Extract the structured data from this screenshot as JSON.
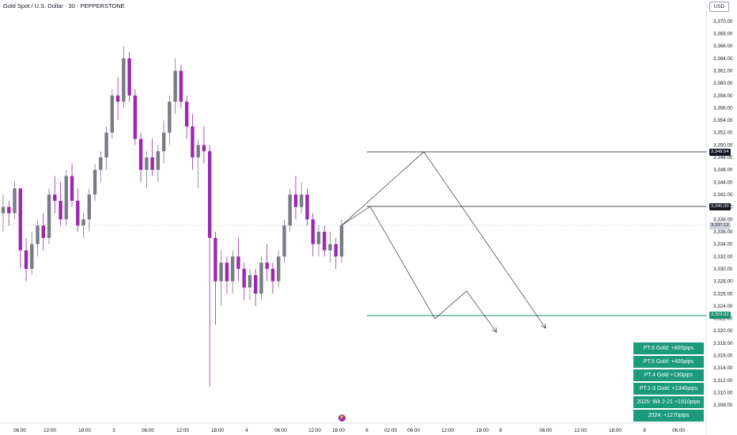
{
  "header": {
    "title": "Gold Spot / U.S. Dollar · 30 · PEPPERSTONE",
    "currency": "USD"
  },
  "price_axis": {
    "ticks": [
      "3,370.00",
      "3,368.00",
      "3,366.00",
      "3,364.00",
      "3,362.00",
      "3,360.00",
      "3,358.00",
      "3,356.00",
      "3,354.00",
      "3,352.00",
      "3,350.00",
      "3,348.00",
      "3,346.00",
      "3,344.00",
      "3,342.00",
      "3,340.00",
      "3,338.00",
      "3,336.00",
      "3,334.00",
      "3,332.00",
      "3,330.00",
      "3,328.00",
      "3,326.00",
      "3,324.00",
      "3,322.00",
      "3,320.00",
      "3,318.00",
      "3,316.00",
      "3,314.00",
      "3,312.00",
      "3,310.00",
      "3,308.00"
    ],
    "labels": {
      "level_high": "3,348.54",
      "level_mid": "3,340.00",
      "last_price": "3,337.13",
      "level_low": "3,323.02"
    }
  },
  "time_axis": {
    "ticks": [
      "06:00",
      "12:00",
      "18:00",
      "3",
      "06:00",
      "12:00",
      "18:00",
      "4",
      "06:00",
      "12:00",
      "16:00",
      "6",
      "02:00",
      "06:00",
      "12:00",
      "18:00",
      "8",
      "06:00",
      "12:00",
      "18:00",
      "9",
      "06:00"
    ]
  },
  "annotations": [
    "PT.6 Gold: +800pips",
    "PT.5 Gold: +400pips",
    "PT.4 Gold +130pips",
    "PT.1-3 Gold: +1340pips",
    "2025: Wk 2-21  +1910pips",
    "2024: +1270pips"
  ],
  "colors": {
    "bull": "#787b86",
    "bear": "#9c27b0",
    "level_green": "#1b8f6e",
    "box": "#1b9a7c"
  },
  "chart_data": {
    "type": "candlestick",
    "symbol": "Gold Spot / U.S. Dollar",
    "interval": "30",
    "exchange": "PEPPERSTONE",
    "y_range": [
      3307,
      3371
    ],
    "levels": [
      3348.54,
      3340.0,
      3323.02
    ],
    "last_price": 3337.13,
    "candles": [
      [
        3339.0,
        3342.0,
        3336.0,
        3340.0
      ],
      [
        3340.0,
        3341.0,
        3337.0,
        3339.0
      ],
      [
        3339.0,
        3344.0,
        3338.0,
        3343.0
      ],
      [
        3343.0,
        3343.0,
        3330.0,
        3333.0
      ],
      [
        3333.0,
        3335.0,
        3328.0,
        3330.0
      ],
      [
        3330.0,
        3336.0,
        3329.0,
        3334.0
      ],
      [
        3334.0,
        3338.0,
        3332.0,
        3337.0
      ],
      [
        3337.0,
        3339.0,
        3333.0,
        3335.0
      ],
      [
        3335.0,
        3343.0,
        3334.0,
        3342.0
      ],
      [
        3342.0,
        3345.0,
        3339.0,
        3341.0
      ],
      [
        3341.0,
        3344.0,
        3337.0,
        3338.0
      ],
      [
        3338.0,
        3346.0,
        3337.0,
        3345.0
      ],
      [
        3345.0,
        3347.0,
        3340.0,
        3341.0
      ],
      [
        3341.0,
        3343.0,
        3336.0,
        3337.0
      ],
      [
        3337.0,
        3339.0,
        3335.0,
        3338.0
      ],
      [
        3338.0,
        3343.0,
        3336.0,
        3342.0
      ],
      [
        3342.0,
        3347.0,
        3341.0,
        3346.0
      ],
      [
        3346.0,
        3349.0,
        3344.0,
        3348.0
      ],
      [
        3348.0,
        3353.0,
        3346.0,
        3352.0
      ],
      [
        3352.0,
        3359.0,
        3351.0,
        3358.0
      ],
      [
        3358.0,
        3361.0,
        3354.0,
        3357.0
      ],
      [
        3357.0,
        3366.0,
        3356.0,
        3364.0
      ],
      [
        3364.0,
        3365.0,
        3357.0,
        3358.0
      ],
      [
        3358.0,
        3359.0,
        3350.0,
        3351.0
      ],
      [
        3351.0,
        3352.0,
        3344.0,
        3346.0
      ],
      [
        3346.0,
        3349.0,
        3343.0,
        3348.0
      ],
      [
        3348.0,
        3351.0,
        3345.0,
        3346.0
      ],
      [
        3346.0,
        3350.0,
        3344.0,
        3349.0
      ],
      [
        3349.0,
        3354.0,
        3347.0,
        3352.0
      ],
      [
        3352.0,
        3358.0,
        3350.0,
        3357.0
      ],
      [
        3357.0,
        3364.0,
        3355.0,
        3362.0
      ],
      [
        3362.0,
        3363.0,
        3356.0,
        3357.0
      ],
      [
        3357.0,
        3358.0,
        3351.0,
        3353.0
      ],
      [
        3353.0,
        3355.0,
        3346.0,
        3348.0
      ],
      [
        3348.0,
        3351.0,
        3343.0,
        3350.0
      ],
      [
        3350.0,
        3353.0,
        3347.0,
        3349.0
      ],
      [
        3349.0,
        3350.0,
        3311.0,
        3335.0
      ],
      [
        3335.0,
        3336.0,
        3321.0,
        3328.0
      ],
      [
        3328.0,
        3333.0,
        3324.0,
        3331.0
      ],
      [
        3331.0,
        3332.0,
        3326.0,
        3328.0
      ],
      [
        3328.0,
        3333.0,
        3326.0,
        3332.0
      ],
      [
        3332.0,
        3335.0,
        3328.0,
        3330.0
      ],
      [
        3330.0,
        3331.0,
        3325.0,
        3327.0
      ],
      [
        3327.0,
        3330.0,
        3325.0,
        3329.0
      ],
      [
        3329.0,
        3330.0,
        3324.0,
        3326.0
      ],
      [
        3326.0,
        3332.0,
        3325.0,
        3331.0
      ],
      [
        3331.0,
        3334.0,
        3328.0,
        3330.0
      ],
      [
        3330.0,
        3331.0,
        3326.0,
        3328.0
      ],
      [
        3328.0,
        3333.0,
        3327.0,
        3332.0
      ],
      [
        3332.0,
        3338.0,
        3331.0,
        3337.0
      ],
      [
        3337.0,
        3343.0,
        3336.0,
        3342.0
      ],
      [
        3342.0,
        3345.0,
        3338.0,
        3340.0
      ],
      [
        3340.0,
        3344.0,
        3339.0,
        3342.0
      ],
      [
        3342.0,
        3343.0,
        3337.0,
        3338.0
      ],
      [
        3338.0,
        3339.0,
        3332.0,
        3334.0
      ],
      [
        3334.0,
        3337.0,
        3332.0,
        3336.0
      ],
      [
        3336.0,
        3337.0,
        3332.0,
        3333.0
      ],
      [
        3333.0,
        3336.0,
        3331.0,
        3334.0
      ],
      [
        3334.0,
        3335.0,
        3330.0,
        3332.0
      ],
      [
        3332.0,
        3338.0,
        3331.0,
        3337.0
      ]
    ]
  }
}
